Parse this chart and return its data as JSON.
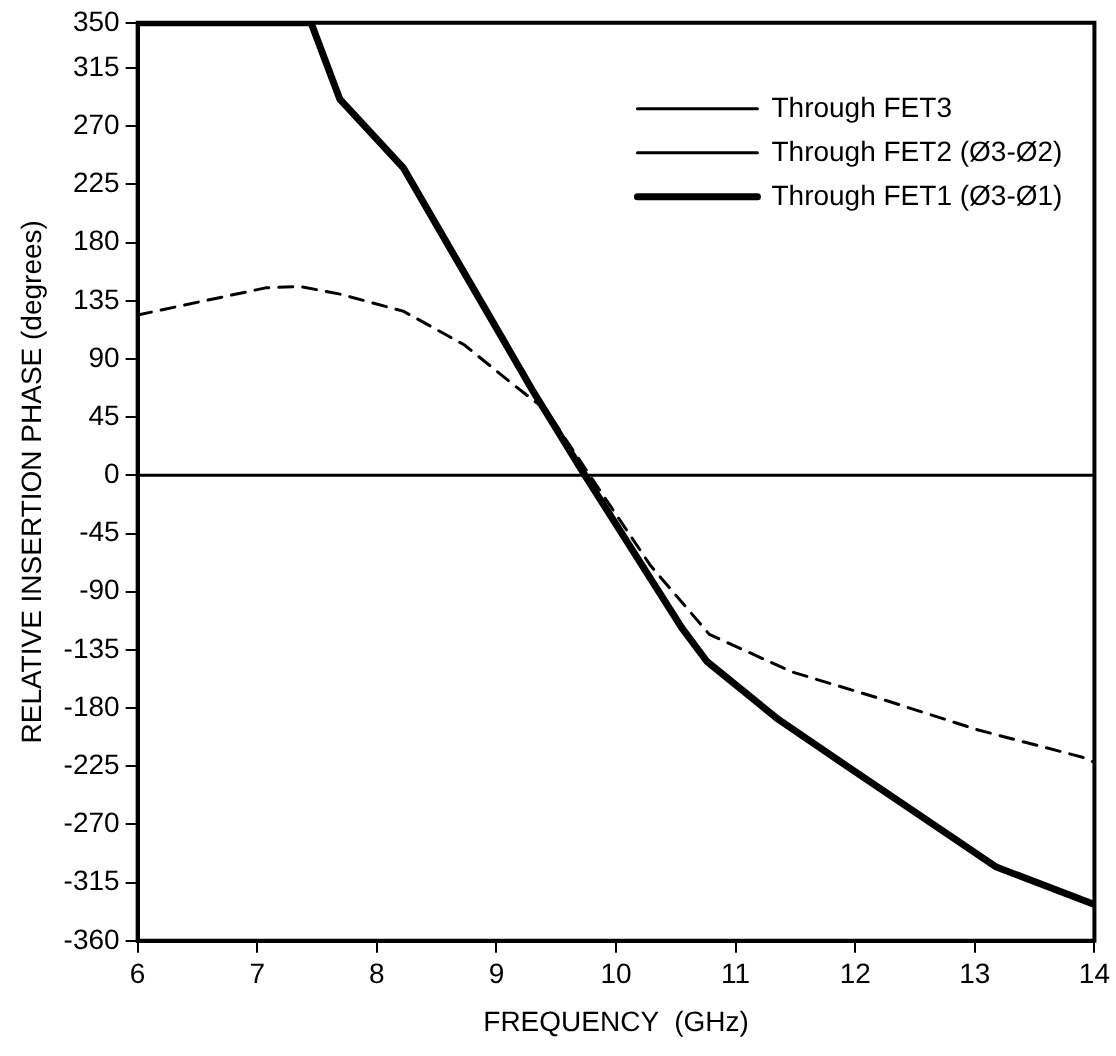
{
  "chart_data": {
    "type": "line",
    "xlabel": "FREQUENCY  (GHz)",
    "ylabel": "RELATIVE INSERTION PHASE (degrees)",
    "xlim": [
      6,
      14
    ],
    "xticks": [
      6,
      7,
      8,
      9,
      10,
      11,
      12,
      13,
      14
    ],
    "ylim": [
      -360,
      350
    ],
    "yticks": [
      -360,
      -315,
      -270,
      -225,
      -180,
      -135,
      -90,
      -45,
      0,
      45,
      90,
      135,
      180,
      225,
      270,
      315,
      350
    ],
    "grid": false,
    "legend": "top right",
    "marker": "none",
    "series": [
      {
        "name": "Through FET3",
        "color": "#000000",
        "line_style": "solid",
        "x": [
          6,
          14
        ],
        "values": [
          0,
          0
        ]
      },
      {
        "name": "Through FET2 (Ø3-Ø2)",
        "color": "#000000",
        "line_style": "dashed",
        "x": [
          6,
          7.07,
          7.36,
          7.7,
          8.22,
          8.73,
          9.13,
          9.42,
          9.78,
          10.29,
          10.78,
          11.47,
          12.22,
          13.03,
          13.9,
          14
        ],
        "values": [
          124,
          145,
          146,
          140,
          127,
          101,
          71,
          50,
          0,
          -70,
          -123,
          -152,
          -173,
          -197,
          -218,
          -222
        ]
      },
      {
        "name": "Through FET1 (Ø3-Ø1)",
        "color": "#000000",
        "line_style": "solid",
        "x": [
          6,
          7.45,
          7.69,
          8.22,
          9.3,
          9.74,
          10.55,
          10.76,
          11.36,
          11.82,
          12.46,
          13.18,
          14
        ],
        "values": [
          350,
          350,
          291,
          238,
          66,
          0,
          -118,
          -144,
          -189,
          -218,
          -258,
          -303,
          -332
        ]
      }
    ]
  }
}
